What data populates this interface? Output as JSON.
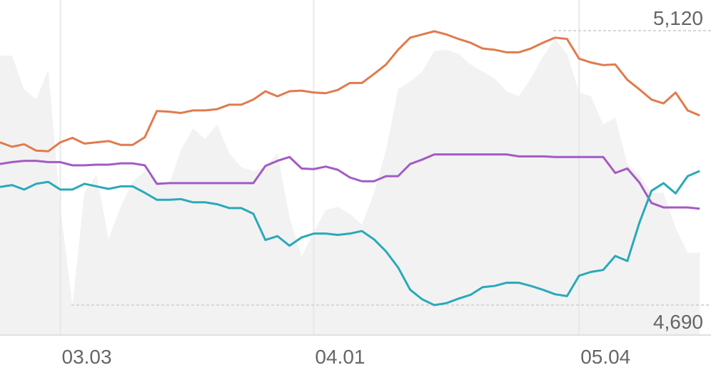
{
  "chart_data": {
    "type": "line",
    "categories": [
      null,
      null,
      null,
      null,
      null,
      "03.03",
      null,
      null,
      null,
      null,
      null,
      null,
      null,
      null,
      null,
      null,
      null,
      null,
      null,
      null,
      null,
      null,
      null,
      null,
      null,
      null,
      "04.01",
      null,
      null,
      null,
      null,
      null,
      null,
      null,
      null,
      null,
      null,
      null,
      null,
      null,
      null,
      null,
      null,
      null,
      null,
      null,
      null,
      null,
      "05.04",
      null,
      null,
      null,
      null,
      null,
      null,
      null,
      null,
      null,
      null
    ],
    "area": {
      "color": "#f2f2f2",
      "values": [
        5081,
        5081,
        5028,
        5012,
        5059,
        4844,
        4690,
        4866,
        4894,
        4794,
        4844,
        4883,
        4900,
        4883,
        4878,
        4933,
        4967,
        4950,
        4973,
        4928,
        4906,
        4900,
        4906,
        4928,
        4827,
        4766,
        4805,
        4839,
        4844,
        4833,
        4816,
        4866,
        4933,
        5028,
        5040,
        5056,
        5088,
        5090,
        5084,
        5067,
        5056,
        5045,
        5025,
        5017,
        5045,
        5079,
        5107,
        5084,
        5023,
        5017,
        4973,
        4984,
        4911,
        4894,
        4866,
        4866,
        4811,
        4772,
        4772
      ]
    },
    "series": [
      {
        "color": "#e07b4d",
        "values": [
          4945,
          4938,
          4942,
          4932,
          4931,
          4945,
          4952,
          4943,
          4945,
          4947,
          4941,
          4941,
          4953,
          4994,
          4993,
          4991,
          4995,
          4995,
          4997,
          5004,
          5004,
          5012,
          5025,
          5017,
          5025,
          5026,
          5023,
          5022,
          5027,
          5038,
          5038,
          5052,
          5067,
          5090,
          5109,
          5114,
          5119,
          5114,
          5107,
          5101,
          5092,
          5090,
          5086,
          5086,
          5092,
          5101,
          5109,
          5107,
          5076,
          5070,
          5066,
          5067,
          5043,
          5028,
          5012,
          5006,
          5023,
          4995,
          4987
        ]
      },
      {
        "color": "#a35bc4",
        "values": [
          4911,
          4914,
          4916,
          4916,
          4914,
          4914,
          4909,
          4909,
          4910,
          4910,
          4912,
          4912,
          4909,
          4880,
          4881,
          4881,
          4881,
          4881,
          4881,
          4881,
          4881,
          4881,
          4908,
          4916,
          4922,
          4904,
          4903,
          4907,
          4902,
          4890,
          4884,
          4884,
          4892,
          4892,
          4911,
          4918,
          4926,
          4926,
          4926,
          4926,
          4926,
          4926,
          4926,
          4923,
          4923,
          4923,
          4922,
          4922,
          4922,
          4922,
          4922,
          4897,
          4904,
          4882,
          4850,
          4843,
          4843,
          4843,
          4841
        ]
      },
      {
        "color": "#2aa9b8",
        "values": [
          4875,
          4878,
          4871,
          4880,
          4883,
          4871,
          4871,
          4880,
          4876,
          4872,
          4876,
          4876,
          4866,
          4855,
          4855,
          4856,
          4851,
          4851,
          4848,
          4842,
          4842,
          4833,
          4792,
          4798,
          4783,
          4796,
          4802,
          4802,
          4800,
          4802,
          4806,
          4793,
          4774,
          4749,
          4714,
          4699,
          4690,
          4693,
          4700,
          4706,
          4718,
          4720,
          4725,
          4725,
          4720,
          4714,
          4707,
          4704,
          4736,
          4742,
          4745,
          4767,
          4759,
          4819,
          4869,
          4881,
          4865,
          4892,
          4900
        ]
      }
    ],
    "ylim": [
      4643,
      5168
    ],
    "yticks": [
      {
        "value": 4690,
        "label": "4,690"
      },
      {
        "value": 5120,
        "label": "5,120"
      }
    ]
  }
}
